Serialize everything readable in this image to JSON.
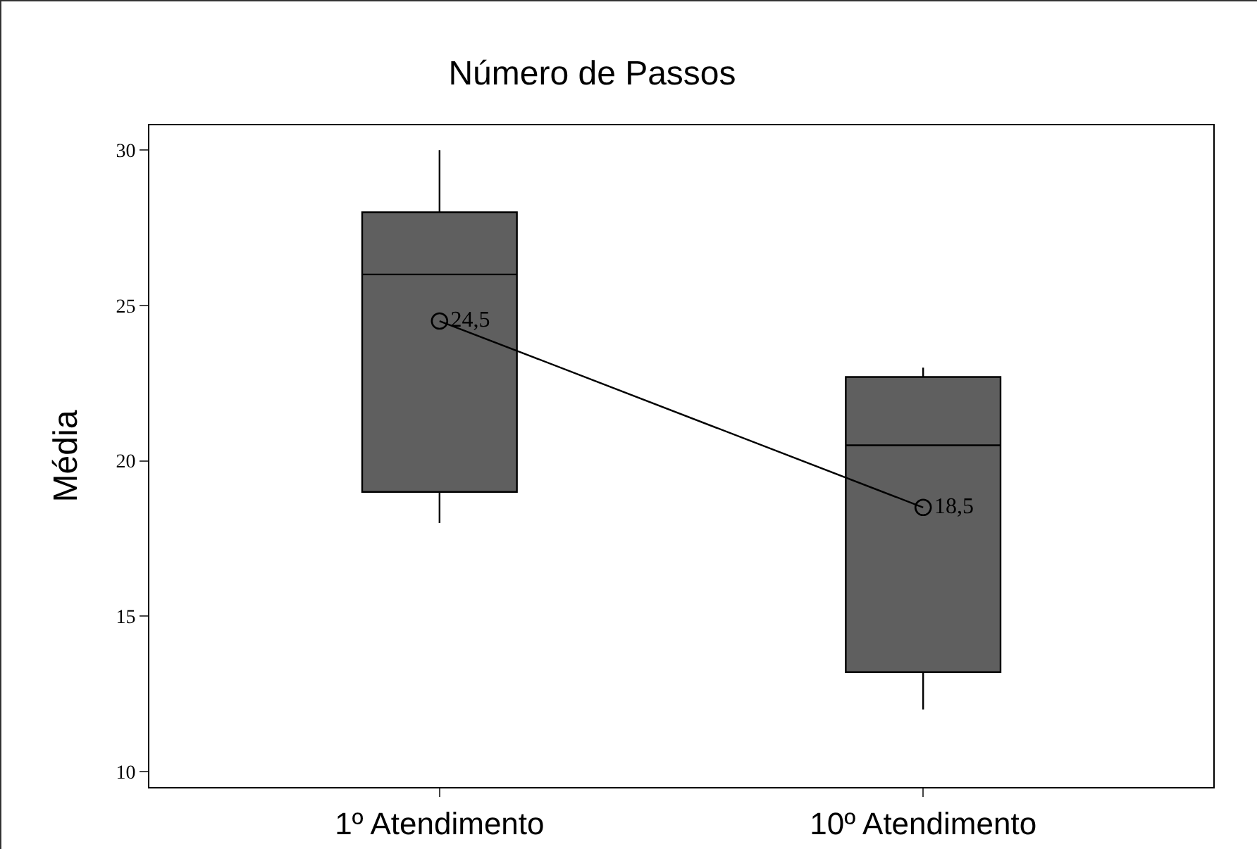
{
  "chart_data": {
    "type": "box",
    "title": "Número de Passos",
    "ylabel": "Média",
    "categories": [
      "1º Atendimento",
      "10º Atendimento"
    ],
    "boxes": [
      {
        "low": 18,
        "q1": 19,
        "median": 26,
        "q3": 28,
        "high": 30
      },
      {
        "low": 12,
        "q1": 13.2,
        "median": 20.5,
        "q3": 22.7,
        "high": 23
      }
    ],
    "color": "#5f5f5f",
    "series": [
      {
        "type": "line",
        "color": "#000000",
        "values": [
          24.5,
          18.5
        ],
        "value_labels": [
          "24,5",
          "18,5"
        ],
        "marker": "circle"
      }
    ],
    "ylim": [
      9.5,
      30.8
    ],
    "yticks": [
      10,
      15,
      20,
      25,
      30
    ],
    "grid": false
  }
}
